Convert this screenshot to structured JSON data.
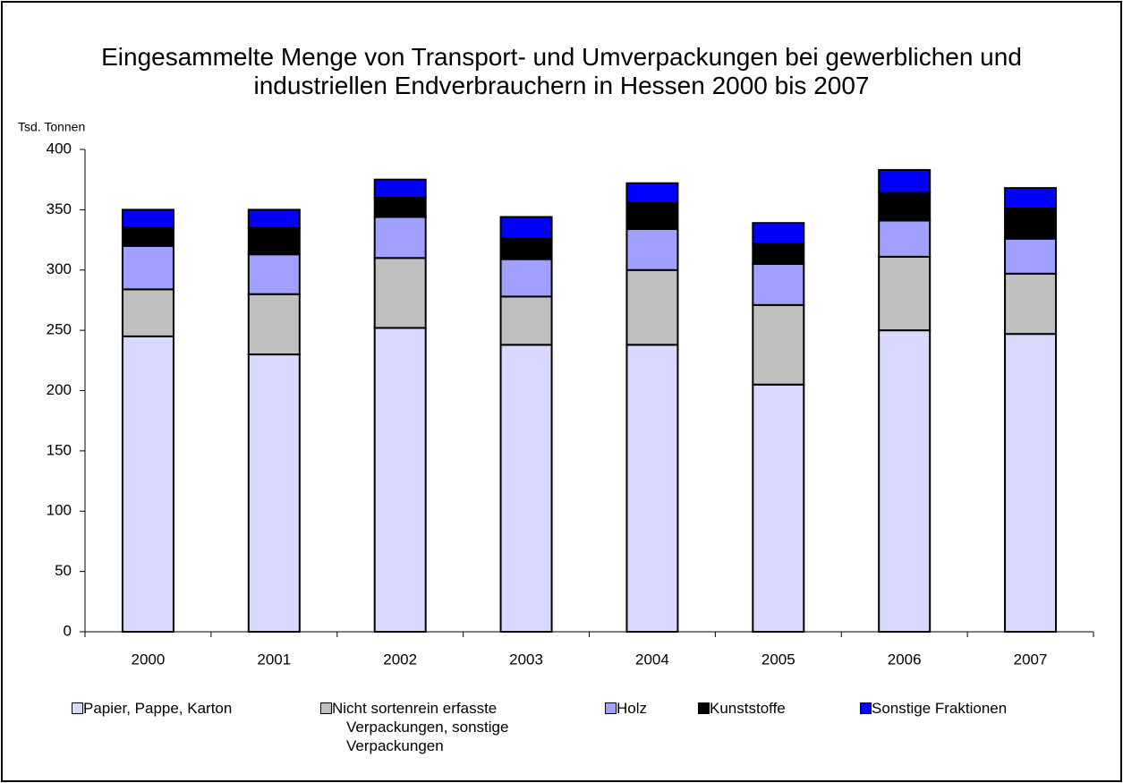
{
  "chart_data": {
    "type": "stacked_bar",
    "title": "Eingesammelte Menge von Transport- und Umverpackungen bei gewerblichen und industriellen Endverbrauchern in Hessen 2000 bis 2007",
    "y_axis_label": "Tsd. Tonnen",
    "categories": [
      "2000",
      "2001",
      "2002",
      "2003",
      "2004",
      "2005",
      "2006",
      "2007"
    ],
    "series": [
      {
        "name": "Papier, Pappe, Karton",
        "color": "#d9d9ff",
        "values": [
          245,
          230,
          252,
          238,
          238,
          205,
          250,
          247
        ]
      },
      {
        "name": "Nicht sortenrein erfasste Verpackungen, sonstige Verpackungen",
        "color": "#c0c0c0",
        "values": [
          39,
          50,
          58,
          40,
          62,
          66,
          61,
          50
        ]
      },
      {
        "name": "Holz",
        "color": "#a0a0ff",
        "values": [
          36,
          33,
          34,
          31,
          34,
          34,
          30,
          29
        ]
      },
      {
        "name": "Kunststoffe",
        "color": "#000000",
        "values": [
          15,
          22,
          16,
          17,
          22,
          17,
          23,
          25
        ]
      },
      {
        "name": "Sonstige Fraktionen",
        "color": "#0000ff",
        "values": [
          15,
          15,
          15,
          18,
          16,
          17,
          19,
          17
        ]
      }
    ],
    "ylim": [
      0,
      400
    ],
    "yticks": [
      0,
      50,
      100,
      150,
      200,
      250,
      300,
      350,
      400
    ],
    "legend": "bottom"
  }
}
